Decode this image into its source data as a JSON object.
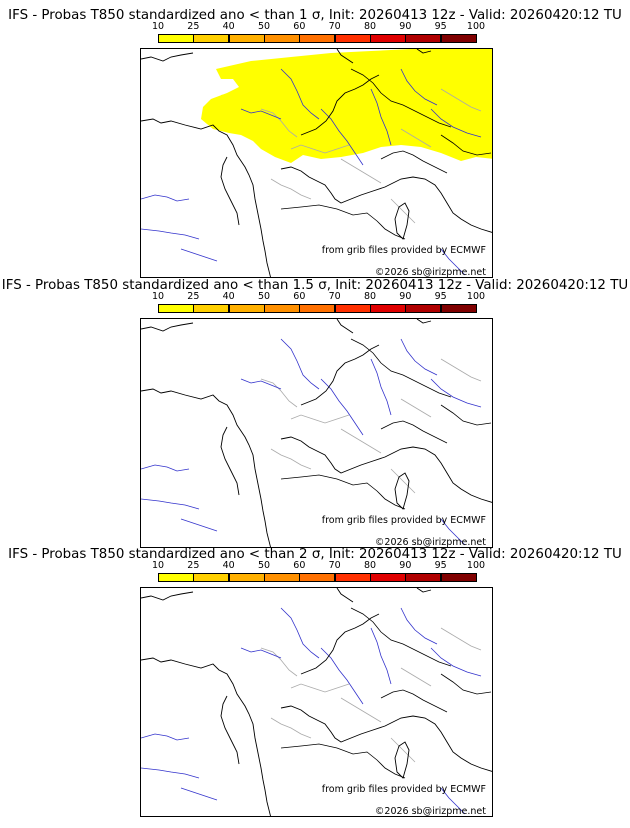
{
  "colorbar": {
    "ticks": [
      "10",
      "25",
      "40",
      "50",
      "60",
      "70",
      "80",
      "90",
      "95",
      "100"
    ],
    "colors": [
      "#ffff00",
      "#ffd000",
      "#ffb000",
      "#ff9000",
      "#ff7000",
      "#ff3000",
      "#e00000",
      "#b00000",
      "#800000"
    ]
  },
  "panels": [
    {
      "title": "IFS - Probas T850  standardized ano < than 1 σ, Init: 20260413 12z - Valid: 20260420:12 TU",
      "credit_source": "from grib files provided by ECMWF",
      "credit_copyright": "©2026 sb@irizpme.net",
      "highlight_color": "#ffff00"
    },
    {
      "title": "IFS - Probas T850  standardized ano < than 1.5 σ, Init: 20260413 12z - Valid: 20260420:12 TU",
      "credit_source": "from grib files provided by ECMWF",
      "credit_copyright": "©2026 sb@irizpme.net"
    },
    {
      "title": "IFS - Probas T850  standardized ano < than 2 σ, Init: 20260413 12z - Valid: 20260420:12 TU",
      "credit_source": "from grib files provided by ECMWF",
      "credit_copyright": "©2026 sb@irizpme.net"
    }
  ]
}
